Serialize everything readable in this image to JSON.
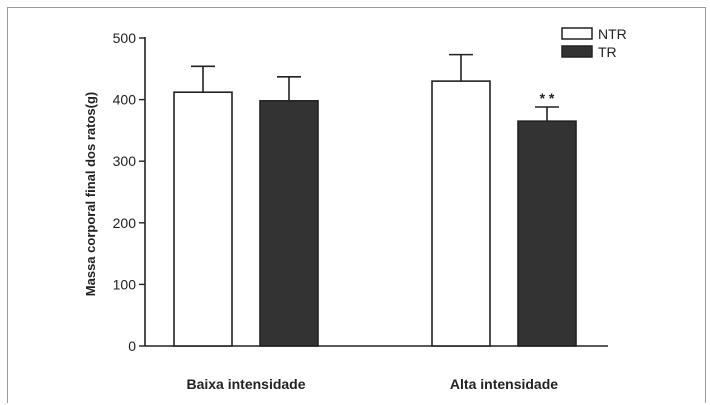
{
  "chart_data": {
    "type": "bar",
    "title": "",
    "xlabel": "",
    "ylabel": "Massa corporal final dos ratos(g)",
    "ylim": [
      0,
      500
    ],
    "yticks": [
      0,
      100,
      200,
      300,
      400,
      500
    ],
    "categories": [
      "Baixa intensidade",
      "Alta intensidade"
    ],
    "series": [
      {
        "name": "NTR",
        "color": "#ffffff",
        "values": [
          412,
          430
        ],
        "errors": [
          42,
          43
        ]
      },
      {
        "name": "TR",
        "color": "#333333",
        "values": [
          398,
          365
        ],
        "errors": [
          39,
          23
        ]
      }
    ],
    "annotations": [
      {
        "category": "Alta intensidade",
        "series": "TR",
        "text": "* *"
      }
    ],
    "legend": "top-right",
    "grid": false
  }
}
